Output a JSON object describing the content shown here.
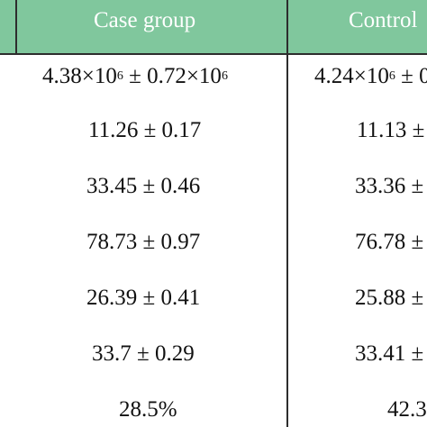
{
  "table": {
    "headers": {
      "case": "Case group",
      "control": "Control"
    },
    "rows": [
      {
        "case": {
          "mantissa": "4.38×10",
          "exp": "6",
          "mid": " ± 0.72×10",
          "exp2": "6"
        },
        "control": {
          "mantissa": "4.24×10",
          "exp": "6",
          "mid": " ± 0.",
          "exp2": ""
        }
      },
      {
        "case": "11.26 ± 0.17",
        "control": "11.13 ±"
      },
      {
        "case": "33.45 ± 0.46",
        "control": "33.36 ±"
      },
      {
        "case": "78.73 ± 0.97",
        "control": "76.78 ±"
      },
      {
        "case": "26.39 ± 0.41",
        "control": "25.88 ±"
      },
      {
        "case": "33.7 ± 0.29",
        "control": "33.41 ±"
      },
      {
        "case": "28.5%",
        "control": "42.3"
      }
    ]
  }
}
